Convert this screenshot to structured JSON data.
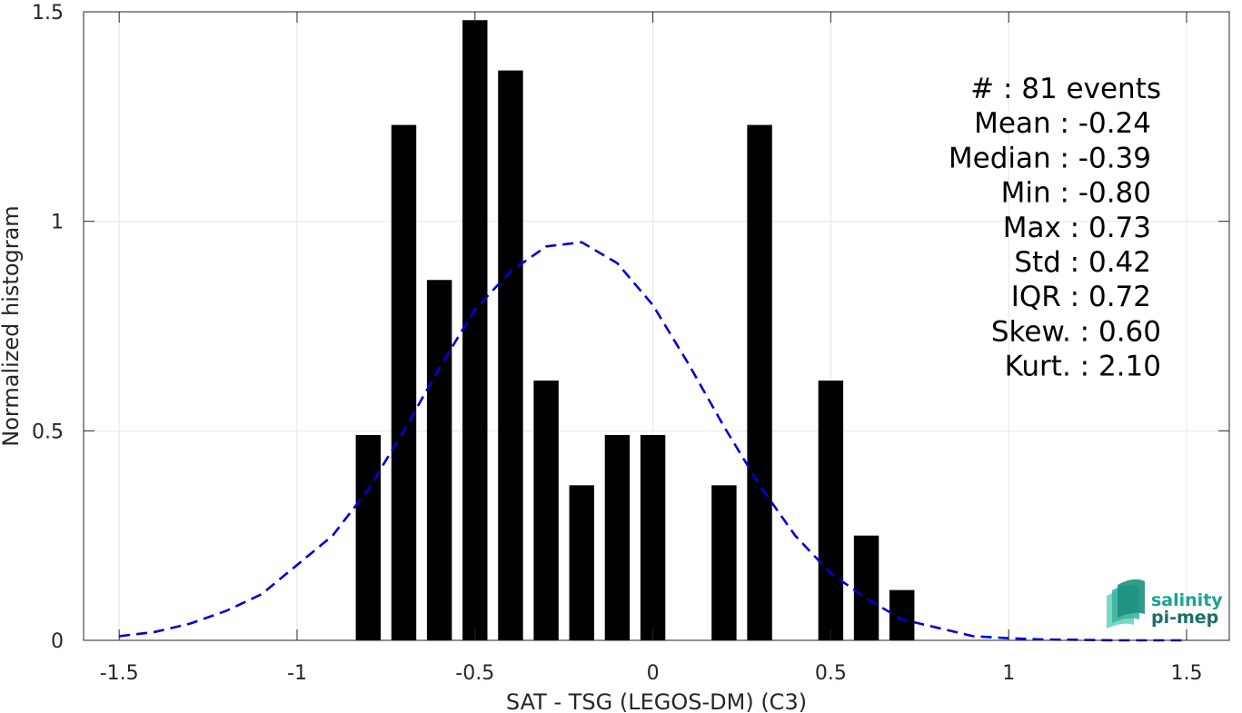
{
  "chart_data": {
    "type": "bar",
    "xlabel": "SAT - TSG (LEGOS-DM) (C3)",
    "ylabel": "Normalized histogram",
    "xlim": [
      -1.6,
      1.62
    ],
    "ylim": [
      0,
      1.5
    ],
    "xticks": [
      -1.5,
      -1,
      -0.5,
      0,
      0.5,
      1,
      1.5
    ],
    "xtick_labels": [
      "-1.5",
      "-1",
      "-0.5",
      "0",
      "0.5",
      "1",
      "1.5"
    ],
    "yticks": [
      0,
      0.5,
      1,
      1.5
    ],
    "ytick_labels": [
      "0",
      "0.5",
      "1",
      "1.5"
    ],
    "grid": true,
    "bar_width": 0.07,
    "bars": [
      {
        "x": -0.8,
        "value": 0.49
      },
      {
        "x": -0.7,
        "value": 1.23
      },
      {
        "x": -0.6,
        "value": 0.86
      },
      {
        "x": -0.5,
        "value": 1.48
      },
      {
        "x": -0.4,
        "value": 1.36
      },
      {
        "x": -0.3,
        "value": 0.62
      },
      {
        "x": -0.2,
        "value": 0.37
      },
      {
        "x": -0.1,
        "value": 0.49
      },
      {
        "x": 0.0,
        "value": 0.49
      },
      {
        "x": 0.2,
        "value": 0.37
      },
      {
        "x": 0.3,
        "value": 1.23
      },
      {
        "x": 0.5,
        "value": 0.62
      },
      {
        "x": 0.6,
        "value": 0.25
      },
      {
        "x": 0.7,
        "value": 0.12
      }
    ],
    "bar_color": "#000000",
    "gaussian_fit": {
      "style": "dashed",
      "color": "#0000dd",
      "x": [
        -1.5,
        -1.4,
        -1.3,
        -1.2,
        -1.1,
        -1.0,
        -0.9,
        -0.8,
        -0.7,
        -0.6,
        -0.5,
        -0.4,
        -0.3,
        -0.2,
        -0.1,
        0.0,
        0.1,
        0.2,
        0.3,
        0.4,
        0.5,
        0.6,
        0.7,
        0.8,
        0.9,
        1.0,
        1.1,
        1.2,
        1.3,
        1.4,
        1.5
      ],
      "y": [
        0.01,
        0.02,
        0.04,
        0.07,
        0.11,
        0.18,
        0.25,
        0.36,
        0.5,
        0.65,
        0.79,
        0.88,
        0.94,
        0.95,
        0.9,
        0.8,
        0.66,
        0.51,
        0.37,
        0.25,
        0.16,
        0.1,
        0.05,
        0.03,
        0.01,
        0.005,
        0.002,
        0.001,
        0.0,
        0.0,
        0.0
      ]
    },
    "annotations": [
      "#  : 81 events",
      "Mean : -0.24",
      "Median : -0.39",
      "Min : -0.80",
      "Max : 0.73",
      "Std : 0.42",
      "IQR : 0.72",
      "Skew. : 0.60",
      "Kurt. : 2.10"
    ]
  },
  "logo": {
    "line1": "salinity",
    "line2": "pi-mep",
    "color_teal": "#1aa38f",
    "color_dark": "#1d6e66"
  }
}
